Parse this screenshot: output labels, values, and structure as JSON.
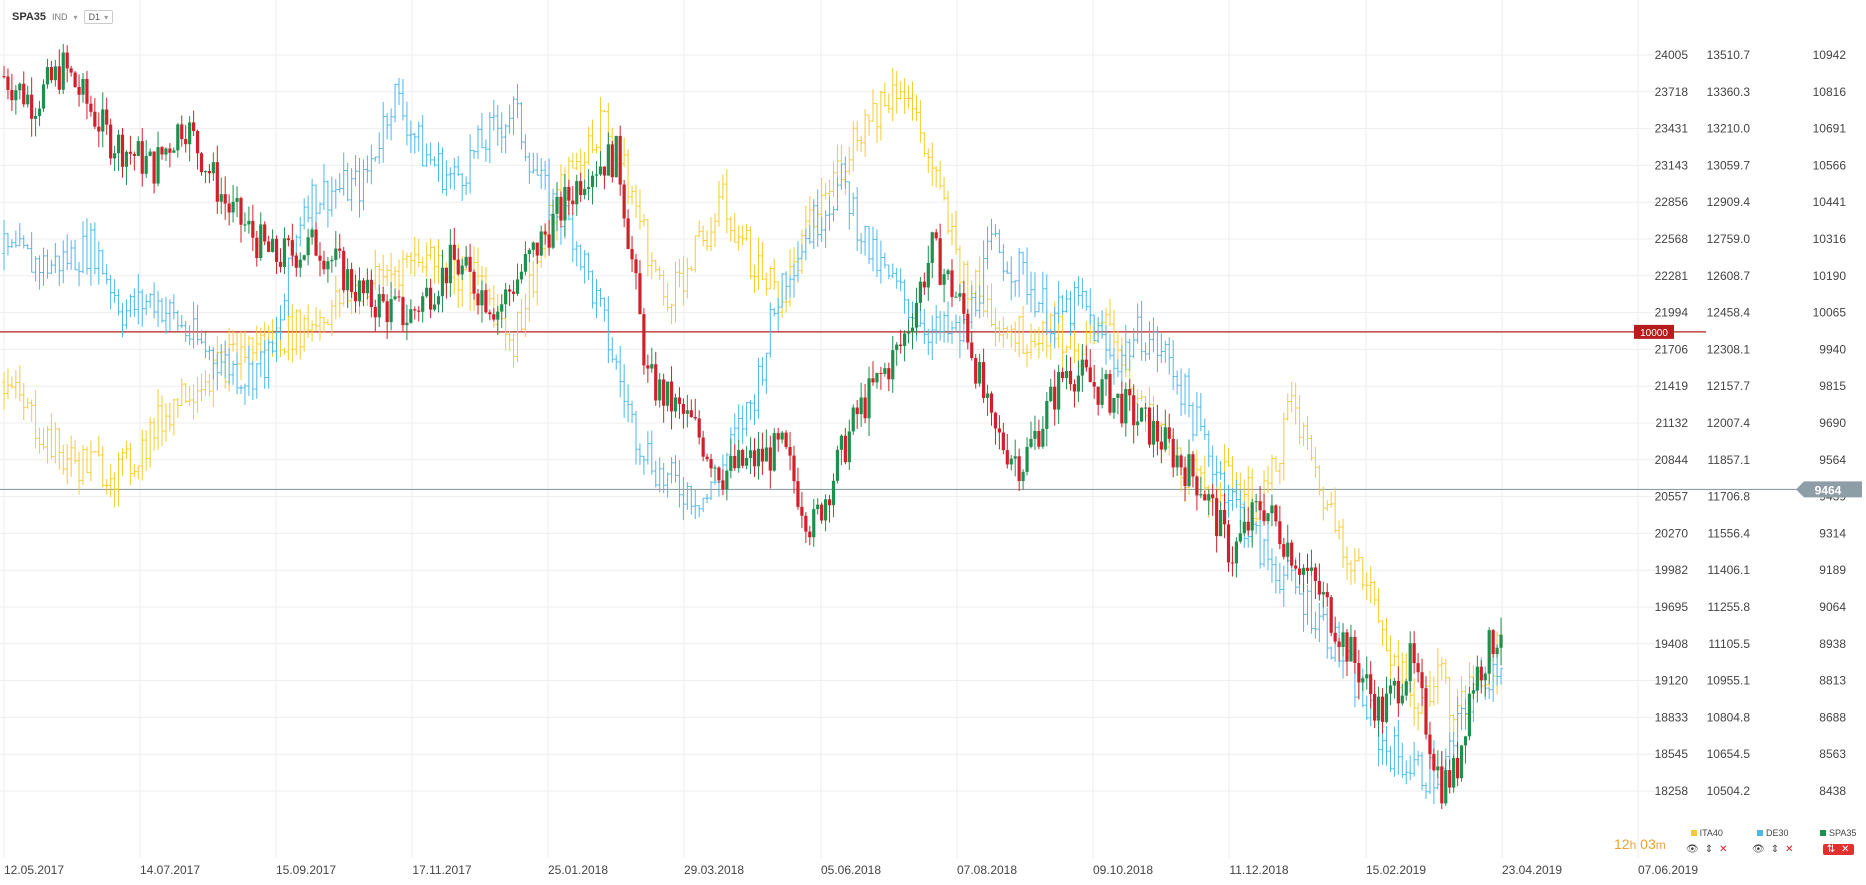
{
  "header": {
    "symbol": "SPA35",
    "indicator": "IND",
    "timeframe": "D1"
  },
  "timer": {
    "hours": "12",
    "h_unit": "h",
    "minutes": "03",
    "m_unit": "m"
  },
  "legend": [
    {
      "name": "ITA40",
      "color": "#f5cc30"
    },
    {
      "name": "DE30",
      "color": "#4cb8e8"
    },
    {
      "name": "SPA35",
      "color": "#1f8f4e"
    }
  ],
  "colors": {
    "up": "#1f8f4e",
    "down": "#d0202a",
    "grid": "#eeeeee",
    "hline_red": "#b71c1c",
    "hline_grey": "#8e9ea6"
  },
  "chart_data": {
    "type": "line",
    "x_ticks": [
      "12.05.2017",
      "14.07.2017",
      "15.09.2017",
      "17.11.2017",
      "25.01.2018",
      "29.03.2018",
      "05.06.2018",
      "07.08.2018",
      "09.10.2018",
      "11.12.2018",
      "15.02.2019",
      "23.04.2019",
      "07.06.2019"
    ],
    "y_axes": [
      {
        "series": "ITA40",
        "ticks": [
          "24005",
          "23718",
          "23431",
          "23143",
          "22856",
          "22568",
          "22281",
          "21994",
          "21706",
          "21419",
          "21132",
          "20844",
          "20557",
          "20270",
          "19982",
          "19695",
          "19408",
          "19120",
          "18833",
          "18545",
          "18258"
        ]
      },
      {
        "series": "DE30",
        "ticks": [
          "13510.7",
          "13360.3",
          "13210.0",
          "13059.7",
          "12909.4",
          "12759.0",
          "12608.7",
          "12458.4",
          "12308.1",
          "12157.7",
          "12007.4",
          "11857.1",
          "11706.8",
          "11556.4",
          "11406.1",
          "11255.8",
          "11105.5",
          "10955.1",
          "10804.8",
          "10654.5",
          "10504.2"
        ]
      },
      {
        "series": "SPA35",
        "ticks": [
          "10942",
          "10816",
          "10691",
          "10566",
          "10441",
          "10316",
          "10190",
          "10065",
          "9940",
          "9815",
          "9690",
          "9564",
          "9439",
          "9314",
          "9189",
          "9064",
          "8938",
          "8813",
          "8688",
          "8563",
          "8438"
        ]
      }
    ],
    "horizontal_lines": [
      {
        "label": "10000",
        "value": 10000,
        "axis": "SPA35"
      },
      {
        "label": "9464",
        "value": 9464,
        "axis": "SPA35"
      }
    ],
    "series": [
      {
        "name": "SPA35",
        "style": "candlestick",
        "axis": "SPA35",
        "keypoints": [
          [
            0,
            10870
          ],
          [
            0.02,
            10780
          ],
          [
            0.04,
            10900
          ],
          [
            0.07,
            10660
          ],
          [
            0.1,
            10560
          ],
          [
            0.12,
            10720
          ],
          [
            0.15,
            10420
          ],
          [
            0.18,
            10250
          ],
          [
            0.21,
            10300
          ],
          [
            0.24,
            10120
          ],
          [
            0.27,
            10050
          ],
          [
            0.3,
            10240
          ],
          [
            0.33,
            10080
          ],
          [
            0.36,
            10320
          ],
          [
            0.39,
            10560
          ],
          [
            0.41,
            10600
          ],
          [
            0.43,
            9840
          ],
          [
            0.46,
            9680
          ],
          [
            0.48,
            9520
          ],
          [
            0.52,
            9600
          ],
          [
            0.54,
            9330
          ],
          [
            0.57,
            9720
          ],
          [
            0.6,
            9960
          ],
          [
            0.62,
            10280
          ],
          [
            0.64,
            10080
          ],
          [
            0.66,
            9660
          ],
          [
            0.68,
            9550
          ],
          [
            0.71,
            9880
          ],
          [
            0.74,
            9780
          ],
          [
            0.77,
            9650
          ],
          [
            0.8,
            9480
          ],
          [
            0.82,
            9240
          ],
          [
            0.84,
            9420
          ],
          [
            0.86,
            9260
          ],
          [
            0.88,
            9100
          ],
          [
            0.9,
            8900
          ],
          [
            0.92,
            8700
          ],
          [
            0.94,
            8880
          ],
          [
            0.96,
            8460
          ],
          [
            0.97,
            8500
          ],
          [
            0.98,
            8800
          ],
          [
            1.0,
            9000
          ]
        ]
      },
      {
        "name": "DE30",
        "style": "ohlc",
        "axis": "DE30",
        "keypoints": [
          [
            0,
            12700
          ],
          [
            0.03,
            12650
          ],
          [
            0.06,
            12730
          ],
          [
            0.08,
            12460
          ],
          [
            0.1,
            12520
          ],
          [
            0.13,
            12330
          ],
          [
            0.16,
            12200
          ],
          [
            0.18,
            12280
          ],
          [
            0.2,
            12920
          ],
          [
            0.22,
            12960
          ],
          [
            0.24,
            12980
          ],
          [
            0.26,
            13360
          ],
          [
            0.28,
            13110
          ],
          [
            0.3,
            13000
          ],
          [
            0.32,
            13150
          ],
          [
            0.34,
            13290
          ],
          [
            0.36,
            12950
          ],
          [
            0.38,
            12800
          ],
          [
            0.4,
            12420
          ],
          [
            0.42,
            12000
          ],
          [
            0.44,
            11780
          ],
          [
            0.47,
            11700
          ],
          [
            0.5,
            12100
          ],
          [
            0.52,
            12600
          ],
          [
            0.54,
            12820
          ],
          [
            0.56,
            12990
          ],
          [
            0.58,
            12680
          ],
          [
            0.6,
            12520
          ],
          [
            0.62,
            12380
          ],
          [
            0.64,
            12360
          ],
          [
            0.66,
            12730
          ],
          [
            0.68,
            12620
          ],
          [
            0.7,
            12430
          ],
          [
            0.72,
            12500
          ],
          [
            0.74,
            12250
          ],
          [
            0.76,
            12380
          ],
          [
            0.78,
            12250
          ],
          [
            0.8,
            11950
          ],
          [
            0.82,
            11700
          ],
          [
            0.84,
            11480
          ],
          [
            0.86,
            11350
          ],
          [
            0.88,
            11200
          ],
          [
            0.9,
            10980
          ],
          [
            0.92,
            10700
          ],
          [
            0.94,
            10600
          ],
          [
            0.96,
            10560
          ],
          [
            0.98,
            10900
          ],
          [
            1.0,
            11050
          ]
        ]
      },
      {
        "name": "ITA40",
        "style": "ohlc",
        "axis": "ITA40",
        "keypoints": [
          [
            0,
            21450
          ],
          [
            0.04,
            20850
          ],
          [
            0.08,
            20750
          ],
          [
            0.12,
            21400
          ],
          [
            0.16,
            21700
          ],
          [
            0.2,
            21880
          ],
          [
            0.24,
            22200
          ],
          [
            0.28,
            22460
          ],
          [
            0.32,
            22200
          ],
          [
            0.34,
            21780
          ],
          [
            0.37,
            22900
          ],
          [
            0.4,
            23500
          ],
          [
            0.42,
            22900
          ],
          [
            0.44,
            22100
          ],
          [
            0.46,
            22400
          ],
          [
            0.48,
            22850
          ],
          [
            0.5,
            22400
          ],
          [
            0.52,
            22100
          ],
          [
            0.54,
            22700
          ],
          [
            0.57,
            23420
          ],
          [
            0.6,
            23820
          ],
          [
            0.62,
            23100
          ],
          [
            0.64,
            22300
          ],
          [
            0.66,
            22000
          ],
          [
            0.68,
            21800
          ],
          [
            0.7,
            21900
          ],
          [
            0.72,
            21700
          ],
          [
            0.74,
            21900
          ],
          [
            0.76,
            21200
          ],
          [
            0.78,
            20900
          ],
          [
            0.8,
            20600
          ],
          [
            0.82,
            20700
          ],
          [
            0.84,
            20450
          ],
          [
            0.86,
            21300
          ],
          [
            0.88,
            20600
          ],
          [
            0.9,
            20100
          ],
          [
            0.92,
            19600
          ],
          [
            0.94,
            18900
          ],
          [
            0.96,
            19200
          ],
          [
            0.97,
            18800
          ],
          [
            0.98,
            19050
          ],
          [
            1.0,
            19400
          ]
        ]
      }
    ]
  }
}
